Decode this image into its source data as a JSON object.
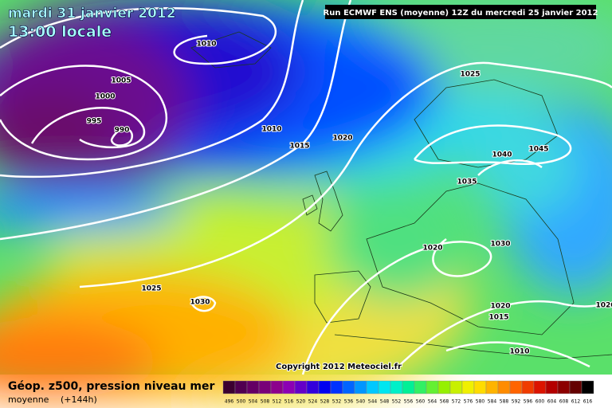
{
  "header": {
    "date": "mardi 31 janvier 2012",
    "time": "13:00 locale",
    "run": "Run ECMWF ENS (moyenne) 12Z du mercredi 25 janvier 2012"
  },
  "isobar_labels": [
    "1010",
    "1005",
    "1000",
    "995",
    "990",
    "1010",
    "1015",
    "1020",
    "1025",
    "1040",
    "1045",
    "1035",
    "1030",
    "1020",
    "1025",
    "1030",
    "1020",
    "1015",
    "1010",
    "1020"
  ],
  "copyright": "Copyright 2012 Meteociel.fr",
  "footer": {
    "title": "Géop. z500, pression niveau mer",
    "subtitle": "moyenne",
    "lead": "(+144h)"
  },
  "legend": {
    "labels": [
      496,
      500,
      504,
      508,
      512,
      516,
      520,
      524,
      528,
      532,
      536,
      540,
      544,
      548,
      552,
      556,
      560,
      564,
      568,
      572,
      576,
      580,
      584,
      588,
      592,
      596,
      600,
      604,
      608,
      612,
      616
    ],
    "colors": [
      "#3c0030",
      "#500050",
      "#640064",
      "#780078",
      "#8c008c",
      "#8c00b4",
      "#6400c8",
      "#3200dc",
      "#0000f0",
      "#0032ff",
      "#0064ff",
      "#0096ff",
      "#00c8ff",
      "#00e6f0",
      "#00f0c8",
      "#00f096",
      "#32f064",
      "#64f032",
      "#96f000",
      "#c8f000",
      "#f0f000",
      "#ffdc00",
      "#ffb400",
      "#ff8c00",
      "#ff6400",
      "#f03c00",
      "#dc1400",
      "#b40000",
      "#8c0000",
      "#640000",
      "#000000"
    ]
  }
}
